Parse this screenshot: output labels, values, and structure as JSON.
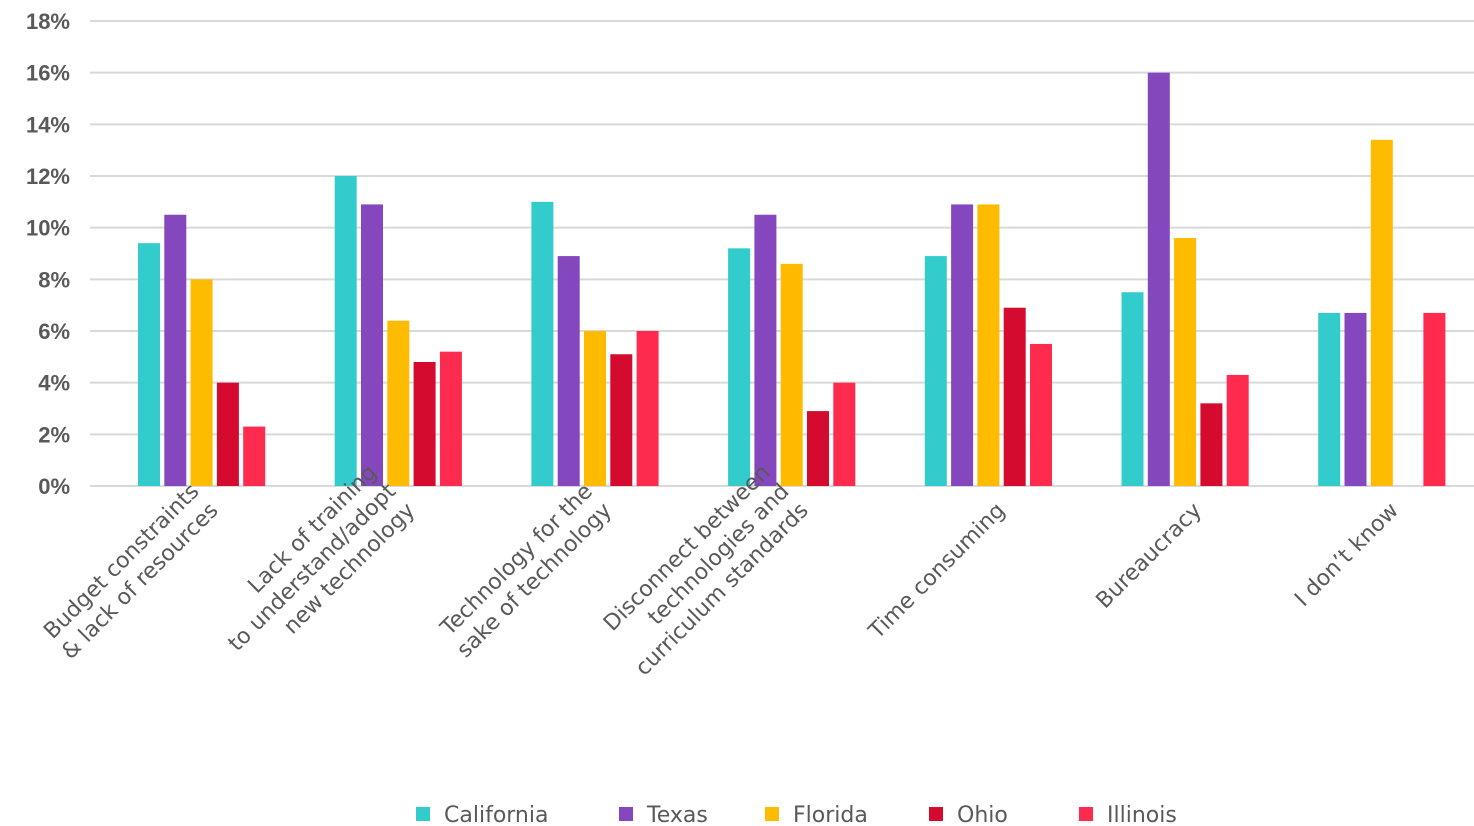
{
  "chart_data": {
    "type": "bar",
    "title": "",
    "xlabel": "",
    "ylabel": "",
    "ylim": [
      0,
      18
    ],
    "y_ticks": [
      "0%",
      "2%",
      "4%",
      "6%",
      "8%",
      "10%",
      "12%",
      "14%",
      "16%",
      "18%"
    ],
    "grid": true,
    "legend_position": "bottom",
    "categories": [
      [
        "Budget constraints",
        "& lack of resources"
      ],
      [
        "Lack of training",
        "to understand/adopt",
        "new technology"
      ],
      [
        "Technology for the",
        "sake of technology"
      ],
      [
        "Disconnect between",
        "technologies and",
        "curriculum standards"
      ],
      [
        "Time consuming"
      ],
      [
        "Bureaucracy"
      ],
      [
        "I don’t know"
      ]
    ],
    "series": [
      {
        "name": "California",
        "color": "#33CCCC",
        "values": [
          9.4,
          12.0,
          11.0,
          9.2,
          8.9,
          7.5,
          6.7
        ]
      },
      {
        "name": "Texas",
        "color": "#8447BE",
        "values": [
          10.5,
          10.9,
          8.9,
          10.5,
          10.9,
          16.0,
          6.7
        ]
      },
      {
        "name": "Florida",
        "color": "#FFBB00",
        "values": [
          8.0,
          6.4,
          6.0,
          8.6,
          10.9,
          9.6,
          13.4
        ]
      },
      {
        "name": "Ohio",
        "color": "#D40A2E",
        "values": [
          4.0,
          4.8,
          5.1,
          2.9,
          6.9,
          3.2,
          0
        ]
      },
      {
        "name": "Illinois",
        "color": "#FF2B4F",
        "values": [
          2.3,
          5.2,
          6.0,
          4.0,
          5.5,
          4.3,
          6.7
        ]
      }
    ]
  }
}
